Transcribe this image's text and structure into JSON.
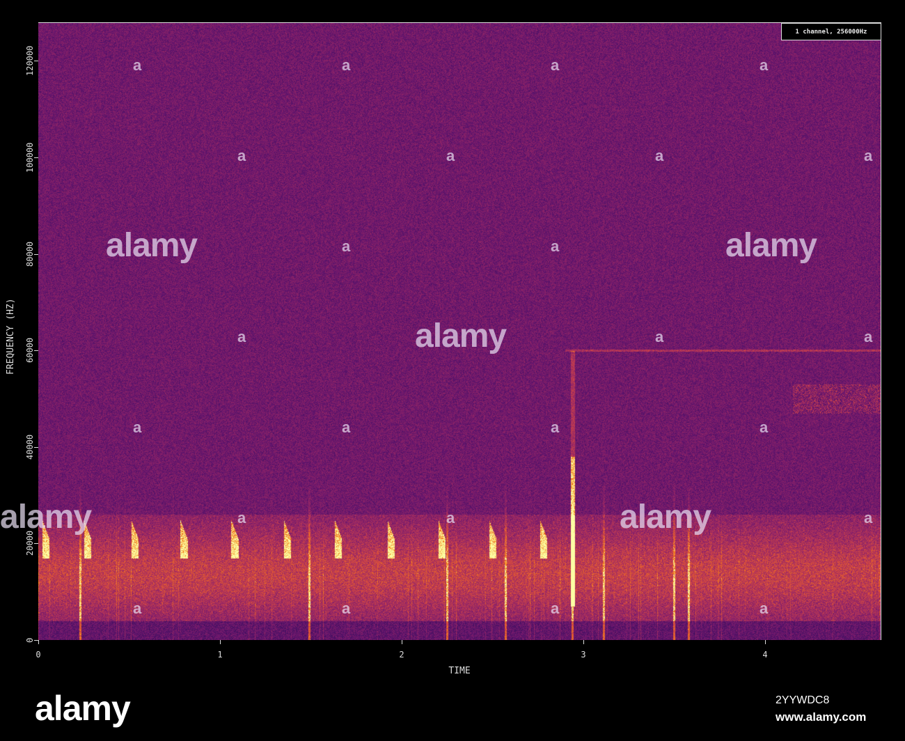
{
  "chart_data": {
    "type": "heatmap",
    "subtype": "spectrogram",
    "colormap": "inferno",
    "xlabel": "TIME",
    "ylabel": "FREQUENCY (HZ)",
    "xlim": [
      0,
      4.64
    ],
    "ylim": [
      0,
      128000
    ],
    "x_ticks": [
      "0",
      "1",
      "2",
      "3",
      "4"
    ],
    "y_ticks": [
      "0",
      "20000",
      "40000",
      "60000",
      "80000",
      "100000",
      "120000"
    ],
    "legend_text": "1 channel, 256000Hz",
    "grid": false,
    "background_band_hz": [
      5000,
      25000
    ],
    "tonal_line_hz": 60000,
    "call_times_s": [
      0.02,
      0.25,
      0.51,
      0.78,
      1.06,
      1.35,
      1.63,
      1.92,
      2.2,
      2.48,
      2.76
    ],
    "strong_click_times_s": [
      0.23,
      1.49,
      2.25,
      2.57,
      2.94,
      3.11,
      3.5,
      3.58
    ],
    "high_band_hz": [
      47000,
      53000
    ],
    "high_band_time_s": [
      4.15,
      4.64
    ]
  },
  "watermark": {
    "brand": "alamy",
    "image_id": "2YYWDC8",
    "url": "www.alamy.com"
  }
}
